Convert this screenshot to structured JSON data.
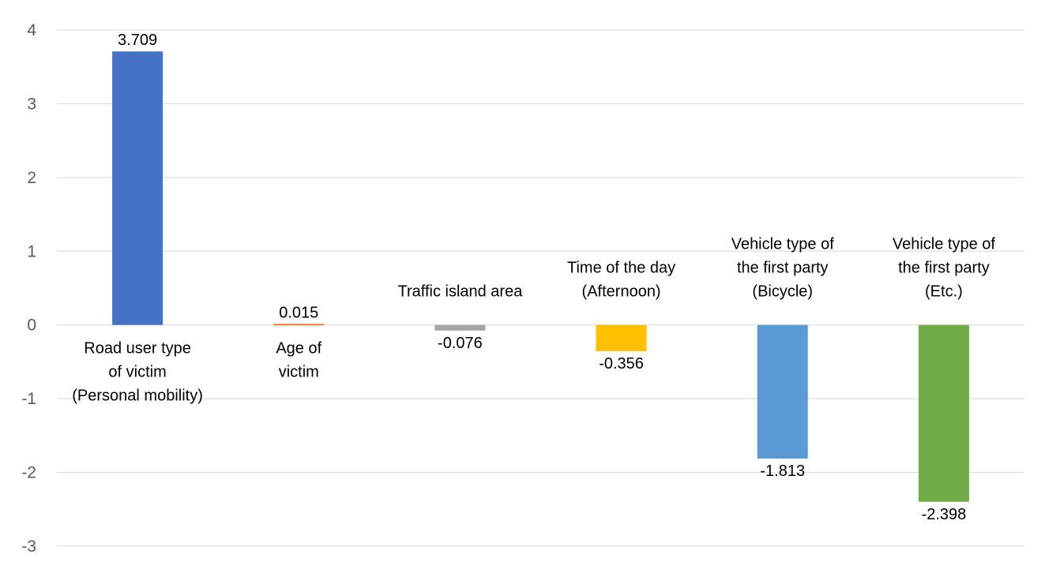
{
  "chart_data": {
    "type": "bar",
    "title": "",
    "xlabel": "",
    "ylabel": "",
    "ylim": [
      -3,
      4
    ],
    "yticks": [
      -3,
      -2,
      -1,
      0,
      1,
      2,
      3,
      4
    ],
    "grid": true,
    "legend": "none",
    "categories": [
      [
        "Road user type",
        "of victim",
        "(Personal mobility)"
      ],
      [
        "Age of",
        "victim"
      ],
      [
        "Traffic island area"
      ],
      [
        "Time of the day",
        "(Afternoon)"
      ],
      [
        "Vehicle type of",
        "the first party",
        "(Bicycle)"
      ],
      [
        "Vehicle type of",
        "the first party",
        "(Etc.)"
      ]
    ],
    "values": [
      3.709,
      0.015,
      -0.076,
      -0.356,
      -1.813,
      -2.398
    ],
    "value_labels": [
      "3.709",
      "0.015",
      "-0.076",
      "-0.356",
      "-1.813",
      "-2.398"
    ],
    "colors": [
      "#4472C4",
      "#ED7D31",
      "#A5A5A5",
      "#FFC000",
      "#5B9BD5",
      "#70AD47"
    ]
  }
}
